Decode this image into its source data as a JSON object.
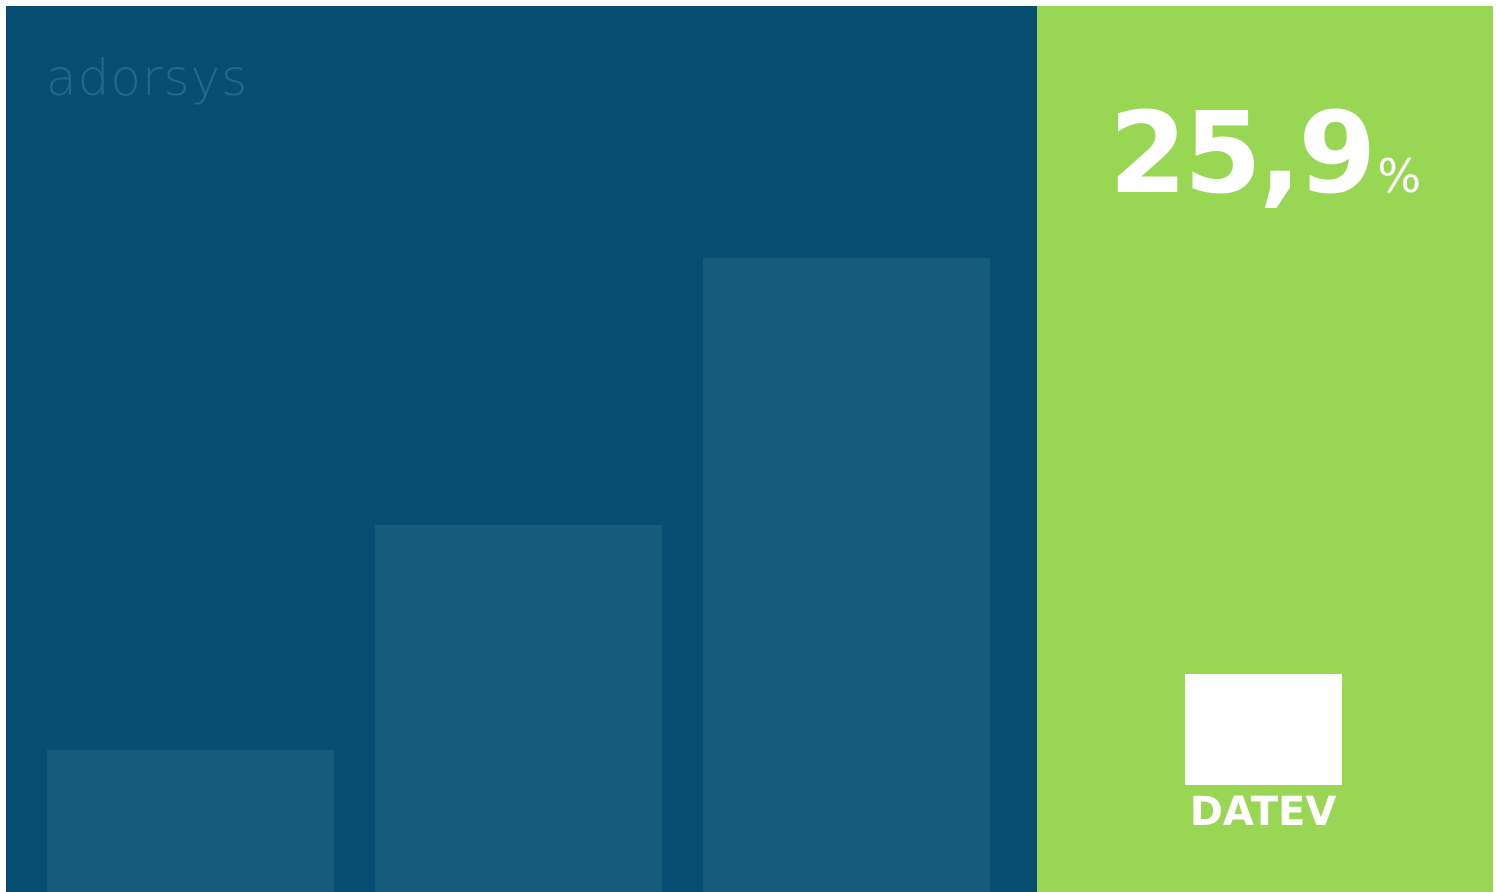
{
  "brand": {
    "logo_text": "adorsys"
  },
  "chart_data": {
    "type": "bar",
    "categories": [
      "",
      "",
      ""
    ],
    "values": [
      142,
      367,
      634
    ],
    "ylim": [
      0,
      650
    ],
    "grid": false,
    "colors": {
      "bar": "#155b7a",
      "background": "#064f72"
    }
  },
  "stat": {
    "value": "25,9",
    "unit": "%"
  },
  "partner": {
    "logo_text": "DATEV"
  },
  "colors": {
    "left_panel": "#064f72",
    "right_panel": "#98d654",
    "text_on_green": "#ffffff",
    "logo_faded": "#23688a"
  }
}
